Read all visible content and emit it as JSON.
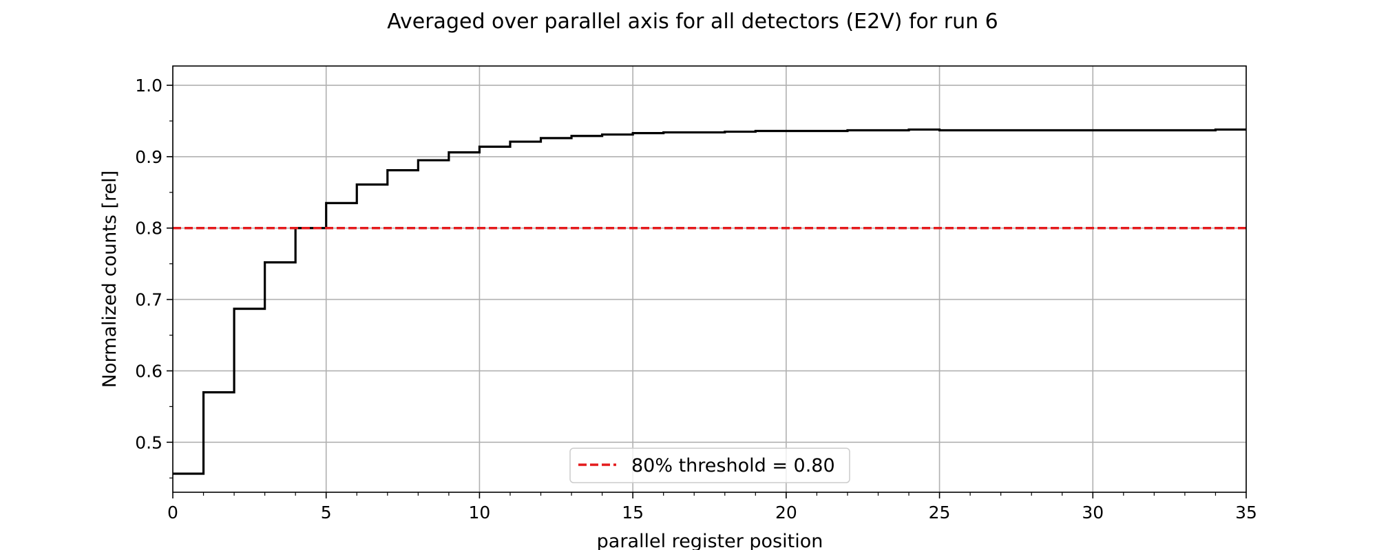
{
  "chart_data": {
    "type": "line",
    "title": "Averaged over parallel axis for all detectors (E2V) for run 6",
    "xlabel": "parallel register position",
    "ylabel": "Normalized counts [rel]",
    "xlim": [
      0,
      35
    ],
    "ylim": [
      0.43,
      1.027
    ],
    "x_ticks": [
      0,
      5,
      10,
      15,
      20,
      25,
      30,
      35
    ],
    "x_tick_labels": [
      "0",
      "5",
      "10",
      "15",
      "20",
      "25",
      "30",
      "35"
    ],
    "y_ticks": [
      0.5,
      0.6,
      0.7,
      0.8,
      0.9,
      1.0
    ],
    "y_tick_labels": [
      "0.5",
      "0.6",
      "0.7",
      "0.8",
      "0.9",
      "1.0"
    ],
    "grid": true,
    "legend_position": "bottom-center",
    "series": [
      {
        "style": "steps-post",
        "color": "#000000",
        "x": [
          0,
          1,
          2,
          3,
          4,
          5,
          6,
          7,
          8,
          9,
          10,
          11,
          12,
          13,
          14,
          15,
          16,
          17,
          18,
          19,
          20,
          21,
          22,
          23,
          24,
          25,
          26,
          27,
          28,
          29,
          30,
          31,
          32,
          33,
          34,
          35
        ],
        "y": [
          0.456,
          0.57,
          0.687,
          0.752,
          0.8,
          0.835,
          0.861,
          0.881,
          0.895,
          0.906,
          0.914,
          0.921,
          0.926,
          0.929,
          0.931,
          0.933,
          0.934,
          0.934,
          0.935,
          0.936,
          0.936,
          0.936,
          0.937,
          0.937,
          0.938,
          0.937,
          0.937,
          0.937,
          0.937,
          0.937,
          0.937,
          0.937,
          0.937,
          0.937,
          0.938,
          0.938
        ]
      },
      {
        "name": "80% threshold = 0.80",
        "style": "dashed",
        "color": "#e41a1c",
        "x": [
          0,
          35
        ],
        "y": [
          0.8,
          0.8
        ]
      }
    ]
  }
}
